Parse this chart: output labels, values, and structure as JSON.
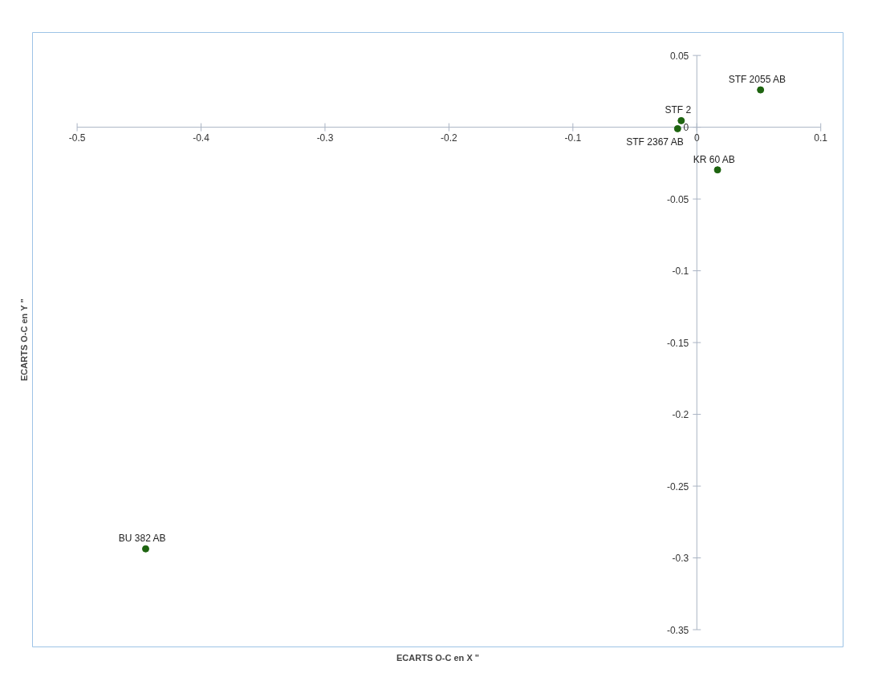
{
  "chart_data": {
    "type": "scatter",
    "xlabel": "ECARTS O-C en X \"",
    "ylabel": "ECARTS O-C en Y \"",
    "x": [
      0.0514,
      -0.0126,
      -0.0155,
      0.0167,
      -0.4447
    ],
    "series": [
      {
        "color": "#1e6410",
        "values": [
          0.026,
          0.0046,
          -0.001,
          -0.0297,
          -0.2937
        ]
      }
    ],
    "annotations": [
      {
        "text": "STF 2055 AB",
        "x": 0.0514,
        "y": 0.026
      },
      {
        "text": "STF 2",
        "x": -0.0126,
        "y": 0.0046
      },
      {
        "text": "STF 2367 AB",
        "x": -0.0155,
        "y": -0.001
      },
      {
        "text": "KR 60 AB",
        "x": 0.0167,
        "y": -0.0297
      },
      {
        "text": "BU 382 AB",
        "x": -0.4447,
        "y": -0.2937
      }
    ],
    "xlim": [
      -0.5,
      0.1
    ],
    "ylim": [
      -0.35,
      0.05
    ],
    "xticks": [
      -0.5,
      -0.4,
      -0.3,
      -0.2,
      -0.1,
      0,
      0.1
    ],
    "yticks": [
      -0.35,
      -0.3,
      -0.25,
      -0.2,
      -0.15,
      -0.1,
      -0.05,
      0,
      0.05
    ],
    "grid": false,
    "marker": "circle"
  }
}
